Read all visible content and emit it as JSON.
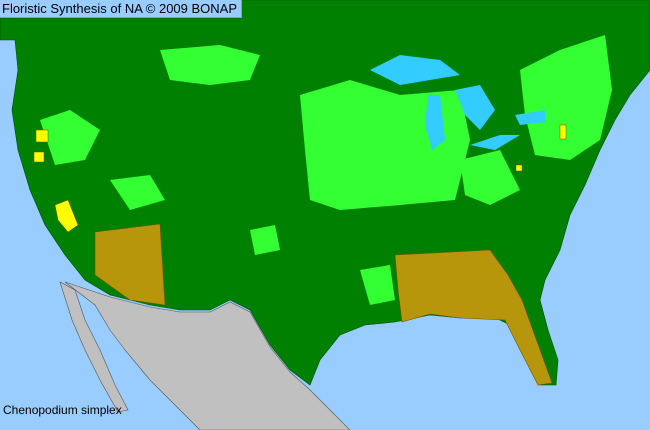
{
  "header": {
    "title": "Floristic Synthesis of NA © 2009 BONAP"
  },
  "map": {
    "species": "Chenopodium simplex",
    "colors": {
      "ocean": "#99ccff",
      "lakes": "#33ccff",
      "present_native": "#008000",
      "present_county": "#33ff33",
      "native_state": "#b8960b",
      "adventive": "#ffff00",
      "outside_range": "#c0c0c0"
    }
  }
}
